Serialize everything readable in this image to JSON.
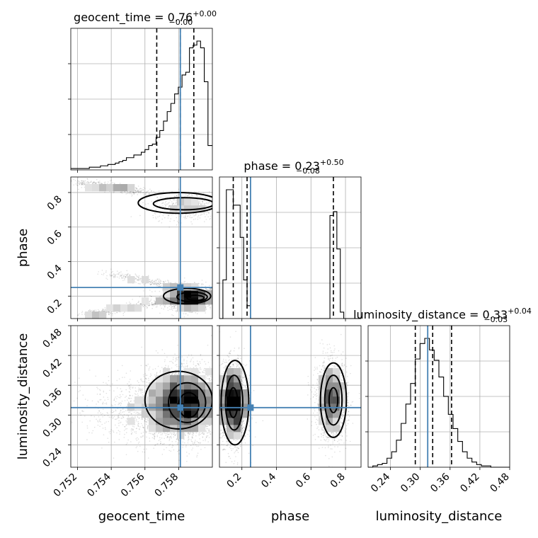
{
  "chart_data": {
    "type": "corner",
    "parameters": [
      "geocent_time",
      "phase",
      "luminosity_distance"
    ],
    "axis_labels": {
      "geocent_time": "geocent_time",
      "phase": "phase",
      "luminosity_distance": "luminosity_distance"
    },
    "ranges": {
      "geocent_time": [
        0.7516,
        0.76
      ],
      "phase": [
        0.07,
        0.89
      ],
      "luminosity_distance": [
        0.195,
        0.48
      ]
    },
    "ticks": {
      "geocent_time": {
        "values": [
          0.752,
          0.754,
          0.756,
          0.758
        ],
        "labels": [
          "0.752",
          "0.754",
          "0.756",
          "0.758"
        ]
      },
      "phase": {
        "values": [
          0.2,
          0.4,
          0.6,
          0.8
        ],
        "labels": [
          "0.2",
          "0.4",
          "0.6",
          "0.8"
        ]
      },
      "luminosity_distance": {
        "values": [
          0.24,
          0.3,
          0.36,
          0.42,
          0.48
        ],
        "labels": [
          "0.24",
          "0.30",
          "0.36",
          "0.42",
          "0.48"
        ]
      }
    },
    "truths": {
      "geocent_time": 0.7581,
      "phase": 0.25,
      "luminosity_distance": 0.315
    },
    "quantiles": {
      "geocent_time": [
        0.7567,
        0.7581,
        0.7589
      ],
      "phase": [
        0.15,
        0.23,
        0.73
      ],
      "luminosity_distance": [
        0.29,
        0.325,
        0.363
      ]
    },
    "titles": {
      "geocent_time": {
        "label": "geocent_time = 0.76",
        "plus": "+0.00",
        "minus": "−0.00"
      },
      "phase": {
        "label": "phase = 0.23",
        "plus": "+0.50",
        "minus": "−0.08"
      },
      "luminosity_distance": {
        "label": "luminosity_distance = 0.33",
        "plus": "+0.04",
        "minus": "−0.03"
      }
    },
    "histograms": {
      "geocent_time": {
        "edges": [
          0.7516,
          0.75182,
          0.75204,
          0.75226,
          0.75248,
          0.7527,
          0.75292,
          0.75314,
          0.75336,
          0.75358,
          0.7538,
          0.75402,
          0.75424,
          0.75446,
          0.75468,
          0.7549,
          0.75512,
          0.75534,
          0.75556,
          0.75578,
          0.756,
          0.75622,
          0.75644,
          0.75666,
          0.75688,
          0.7571,
          0.75732,
          0.75754,
          0.75776,
          0.75798,
          0.7582,
          0.75842,
          0.75864,
          0.75886,
          0.75908,
          0.7593,
          0.75952,
          0.75974,
          0.76
        ],
        "counts": [
          1,
          1,
          1,
          1,
          1,
          2,
          2,
          2,
          3,
          3,
          4,
          4,
          5,
          6,
          7,
          9,
          9,
          11,
          11,
          13,
          15,
          18,
          19,
          24,
          29,
          36,
          43,
          49,
          56,
          61,
          70,
          72,
          90,
          92,
          95,
          90,
          65,
          18
        ]
      },
      "phase": {
        "edges": [
          0.07,
          0.09,
          0.11,
          0.13,
          0.15,
          0.17,
          0.19,
          0.21,
          0.23,
          0.25,
          0.27,
          0.29,
          0.31,
          0.33,
          0.35,
          0.37,
          0.39,
          0.41,
          0.43,
          0.45,
          0.47,
          0.49,
          0.51,
          0.53,
          0.55,
          0.57,
          0.59,
          0.61,
          0.63,
          0.65,
          0.67,
          0.69,
          0.71,
          0.73,
          0.75,
          0.77,
          0.79,
          0.81,
          0.83,
          0.85,
          0.87,
          0.89
        ],
        "counts": [
          0,
          30,
          100,
          100,
          88,
          88,
          63,
          30,
          10,
          0,
          0,
          0,
          0,
          0,
          0,
          0,
          0,
          0,
          0,
          0,
          0,
          0,
          0,
          0,
          0,
          0,
          0,
          0,
          0,
          0,
          0,
          0,
          80,
          83,
          54,
          5,
          0,
          0,
          0,
          0,
          0
        ]
      },
      "luminosity_distance": {
        "edges": [
          0.195,
          0.2045,
          0.214,
          0.2235,
          0.233,
          0.2425,
          0.252,
          0.2615,
          0.271,
          0.2805,
          0.29,
          0.2995,
          0.309,
          0.3185,
          0.328,
          0.3375,
          0.347,
          0.3565,
          0.366,
          0.3755,
          0.385,
          0.3945,
          0.404,
          0.4135,
          0.423,
          0.4325,
          0.442,
          0.4515,
          0.461,
          0.4705,
          0.48
        ],
        "counts": [
          0,
          1,
          2,
          3,
          7,
          12,
          21,
          34,
          49,
          65,
          84,
          96,
          100,
          91,
          83,
          70,
          55,
          41,
          30,
          20,
          12,
          7,
          4,
          2,
          1,
          1,
          0,
          0,
          0,
          0
        ]
      }
    },
    "pairs": [
      {
        "x": "geocent_time",
        "y": "phase"
      },
      {
        "x": "geocent_time",
        "y": "luminosity_distance"
      },
      {
        "x": "phase",
        "y": "luminosity_distance"
      }
    ]
  }
}
